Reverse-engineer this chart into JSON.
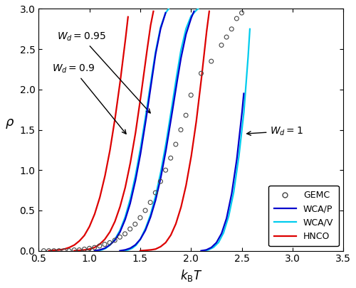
{
  "xlim": [
    0.5,
    3.5
  ],
  "ylim": [
    0,
    3
  ],
  "xlabel": "$k_{\\mathrm{B}}T$",
  "ylabel": "$\\rho$",
  "xticks": [
    0.5,
    1.0,
    1.5,
    2.0,
    2.5,
    3.0,
    3.5
  ],
  "yticks": [
    0,
    0.5,
    1.0,
    1.5,
    2.0,
    2.5,
    3.0
  ],
  "gemc_color": "#444444",
  "wcap_color": "#0000cc",
  "wcav_color": "#00ccee",
  "hnco_color": "#dd0000",
  "gemc_data": {
    "x": [
      0.55,
      0.6,
      0.65,
      0.7,
      0.75,
      0.8,
      0.85,
      0.9,
      0.95,
      1.0,
      1.05,
      1.1,
      1.15,
      1.2,
      1.25,
      1.3,
      1.35,
      1.4,
      1.45,
      1.5,
      1.55,
      1.6,
      1.65,
      1.7,
      1.75,
      1.8,
      1.85,
      1.9,
      1.95,
      2.0,
      2.1,
      2.2,
      2.3,
      2.35,
      2.4,
      2.45,
      2.5
    ],
    "y": [
      0.0,
      0.0,
      0.0,
      0.0,
      0.0,
      0.0,
      0.01,
      0.01,
      0.02,
      0.03,
      0.04,
      0.06,
      0.08,
      0.1,
      0.13,
      0.17,
      0.21,
      0.27,
      0.33,
      0.41,
      0.5,
      0.6,
      0.72,
      0.86,
      1.0,
      1.15,
      1.32,
      1.5,
      1.68,
      1.93,
      2.2,
      2.35,
      2.55,
      2.65,
      2.75,
      2.88,
      2.95
    ]
  },
  "wcap_wd09": {
    "T": [
      1.05,
      1.1,
      1.15,
      1.2,
      1.25,
      1.3,
      1.35,
      1.4,
      1.45,
      1.5,
      1.55,
      1.6,
      1.65,
      1.7,
      1.75
    ],
    "rho": [
      0.0,
      0.01,
      0.03,
      0.07,
      0.13,
      0.23,
      0.38,
      0.58,
      0.85,
      1.18,
      1.57,
      2.0,
      2.43,
      2.75,
      2.95
    ]
  },
  "wcap_wd095": {
    "T": [
      1.3,
      1.35,
      1.4,
      1.45,
      1.5,
      1.55,
      1.6,
      1.65,
      1.7,
      1.75,
      1.8,
      1.85,
      1.9,
      1.95,
      2.0,
      2.03
    ],
    "rho": [
      0.0,
      0.01,
      0.03,
      0.07,
      0.14,
      0.25,
      0.41,
      0.62,
      0.89,
      1.22,
      1.6,
      2.0,
      2.38,
      2.68,
      2.88,
      2.97
    ]
  },
  "wcap_wd1": {
    "T": [
      2.1,
      2.15,
      2.2,
      2.25,
      2.3,
      2.35,
      2.4,
      2.45,
      2.5,
      2.52
    ],
    "rho": [
      0.0,
      0.01,
      0.04,
      0.1,
      0.21,
      0.4,
      0.7,
      1.12,
      1.68,
      1.95
    ]
  },
  "wcav_wd09": {
    "T": [
      1.08,
      1.12,
      1.16,
      1.2,
      1.25,
      1.3,
      1.35,
      1.4,
      1.45,
      1.5,
      1.55,
      1.6,
      1.65,
      1.7,
      1.75,
      1.78
    ],
    "rho": [
      0.0,
      0.01,
      0.03,
      0.07,
      0.14,
      0.25,
      0.41,
      0.63,
      0.91,
      1.25,
      1.64,
      2.06,
      2.46,
      2.77,
      2.95,
      3.0
    ]
  },
  "wcav_wd095": {
    "T": [
      1.33,
      1.38,
      1.42,
      1.46,
      1.5,
      1.55,
      1.6,
      1.65,
      1.7,
      1.75,
      1.8,
      1.85,
      1.9,
      1.95,
      2.0,
      2.05,
      2.07
    ],
    "rho": [
      0.0,
      0.01,
      0.03,
      0.07,
      0.14,
      0.27,
      0.44,
      0.67,
      0.96,
      1.3,
      1.69,
      2.1,
      2.48,
      2.75,
      2.91,
      2.98,
      3.0
    ]
  },
  "wcav_wd1": {
    "T": [
      2.12,
      2.17,
      2.22,
      2.27,
      2.32,
      2.37,
      2.42,
      2.47,
      2.52,
      2.56,
      2.58
    ],
    "rho": [
      0.0,
      0.01,
      0.04,
      0.1,
      0.22,
      0.42,
      0.72,
      1.15,
      1.7,
      2.35,
      2.75
    ]
  },
  "hnco_wd09": {
    "T": [
      0.6,
      0.65,
      0.7,
      0.75,
      0.8,
      0.85,
      0.9,
      0.95,
      1.0,
      1.05,
      1.1,
      1.15,
      1.2,
      1.25,
      1.3,
      1.35,
      1.38
    ],
    "rho": [
      0.0,
      0.005,
      0.01,
      0.02,
      0.04,
      0.07,
      0.12,
      0.19,
      0.3,
      0.45,
      0.65,
      0.91,
      1.23,
      1.62,
      2.07,
      2.57,
      2.9
    ]
  },
  "hnco_wd095": {
    "T": [
      0.85,
      0.9,
      0.95,
      1.0,
      1.05,
      1.1,
      1.15,
      1.2,
      1.25,
      1.3,
      1.35,
      1.4,
      1.45,
      1.5,
      1.55,
      1.6,
      1.63
    ],
    "rho": [
      0.0,
      0.005,
      0.01,
      0.02,
      0.04,
      0.08,
      0.14,
      0.23,
      0.36,
      0.54,
      0.77,
      1.07,
      1.43,
      1.86,
      2.33,
      2.78,
      2.97
    ]
  },
  "hnco_wd1": {
    "T": [
      1.5,
      1.55,
      1.6,
      1.65,
      1.7,
      1.75,
      1.8,
      1.85,
      1.9,
      1.95,
      2.0,
      2.05,
      2.1,
      2.15,
      2.18
    ],
    "rho": [
      0.0,
      0.005,
      0.01,
      0.02,
      0.05,
      0.1,
      0.19,
      0.33,
      0.53,
      0.8,
      1.15,
      1.58,
      2.1,
      2.68,
      2.97
    ]
  }
}
